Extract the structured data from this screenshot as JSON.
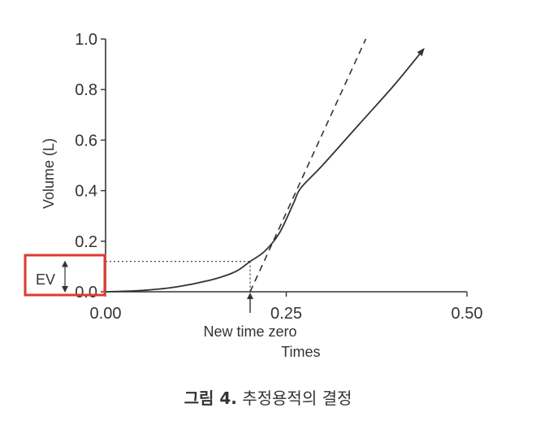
{
  "caption": {
    "bold": "그림 4.",
    "text": "추정용적의 결정"
  },
  "colors": {
    "axis": "#333333",
    "curve": "#333333",
    "highlight": "#e03a2f"
  },
  "chart_data": {
    "type": "line",
    "xlabel": "Times",
    "ylabel": "Volume (L)",
    "xlim": [
      0,
      0.5
    ],
    "ylim": [
      0,
      1.0
    ],
    "xticks": [
      0.0,
      0.25,
      0.5
    ],
    "xtick_labels": [
      "0.00",
      "0.25",
      "0.50"
    ],
    "yticks": [
      0.0,
      0.2,
      0.4,
      0.6,
      0.8,
      1.0
    ],
    "ytick_labels": [
      "0.0",
      "0.2",
      "0.4",
      "0.6",
      "0.8",
      "1.0"
    ],
    "series": [
      {
        "style": "solid",
        "arrow_end": true,
        "x": [
          0.0,
          0.05,
          0.1,
          0.15,
          0.18,
          0.2,
          0.22,
          0.24,
          0.26,
          0.27,
          0.3,
          0.35,
          0.4,
          0.44
        ],
        "y": [
          0.0,
          0.005,
          0.02,
          0.05,
          0.08,
          0.12,
          0.16,
          0.23,
          0.35,
          0.41,
          0.5,
          0.66,
          0.82,
          0.96
        ]
      },
      {
        "style": "dashed",
        "x": [
          0.2,
          0.36
        ],
        "y": [
          0.0,
          1.0
        ]
      }
    ],
    "annotations": {
      "new_time_zero": {
        "label": "New time zero",
        "x": 0.2
      },
      "ev": {
        "label": "EV",
        "y": 0.12
      }
    }
  }
}
